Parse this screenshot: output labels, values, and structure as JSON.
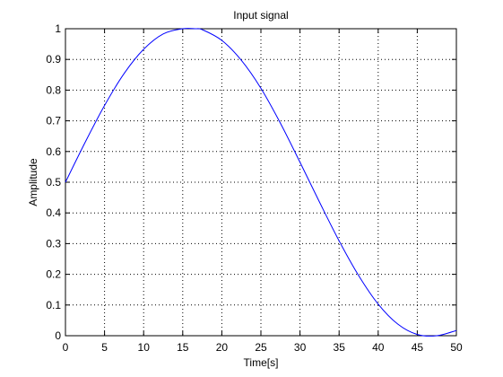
{
  "chart_data": {
    "type": "line",
    "title": "Input signal",
    "xlabel": "Time[s]",
    "ylabel": "Amplitude",
    "xlim": [
      0,
      50
    ],
    "ylim": [
      0,
      1
    ],
    "xticks": [
      "0",
      "5",
      "10",
      "15",
      "20",
      "25",
      "30",
      "35",
      "40",
      "45",
      "50"
    ],
    "yticks": [
      "0",
      "0.1",
      "0.2",
      "0.3",
      "0.4",
      "0.5",
      "0.6",
      "0.7",
      "0.8",
      "0.9",
      "1"
    ],
    "grid": true,
    "series": [
      {
        "color": "#0000ff",
        "x": [
          0,
          2.5,
          5,
          7.5,
          10,
          12.5,
          15,
          16.67,
          17.5,
          20,
          22.5,
          25,
          27.5,
          30,
          32.5,
          35,
          37.5,
          40,
          42.5,
          45,
          47.5,
          50
        ],
        "y": [
          0.5,
          0.629,
          0.75,
          0.854,
          0.933,
          0.983,
          1.0,
          1.0,
          0.997,
          0.962,
          0.897,
          0.806,
          0.692,
          0.565,
          0.435,
          0.309,
          0.196,
          0.103,
          0.038,
          0.004,
          0.0,
          0.017
        ]
      }
    ]
  }
}
